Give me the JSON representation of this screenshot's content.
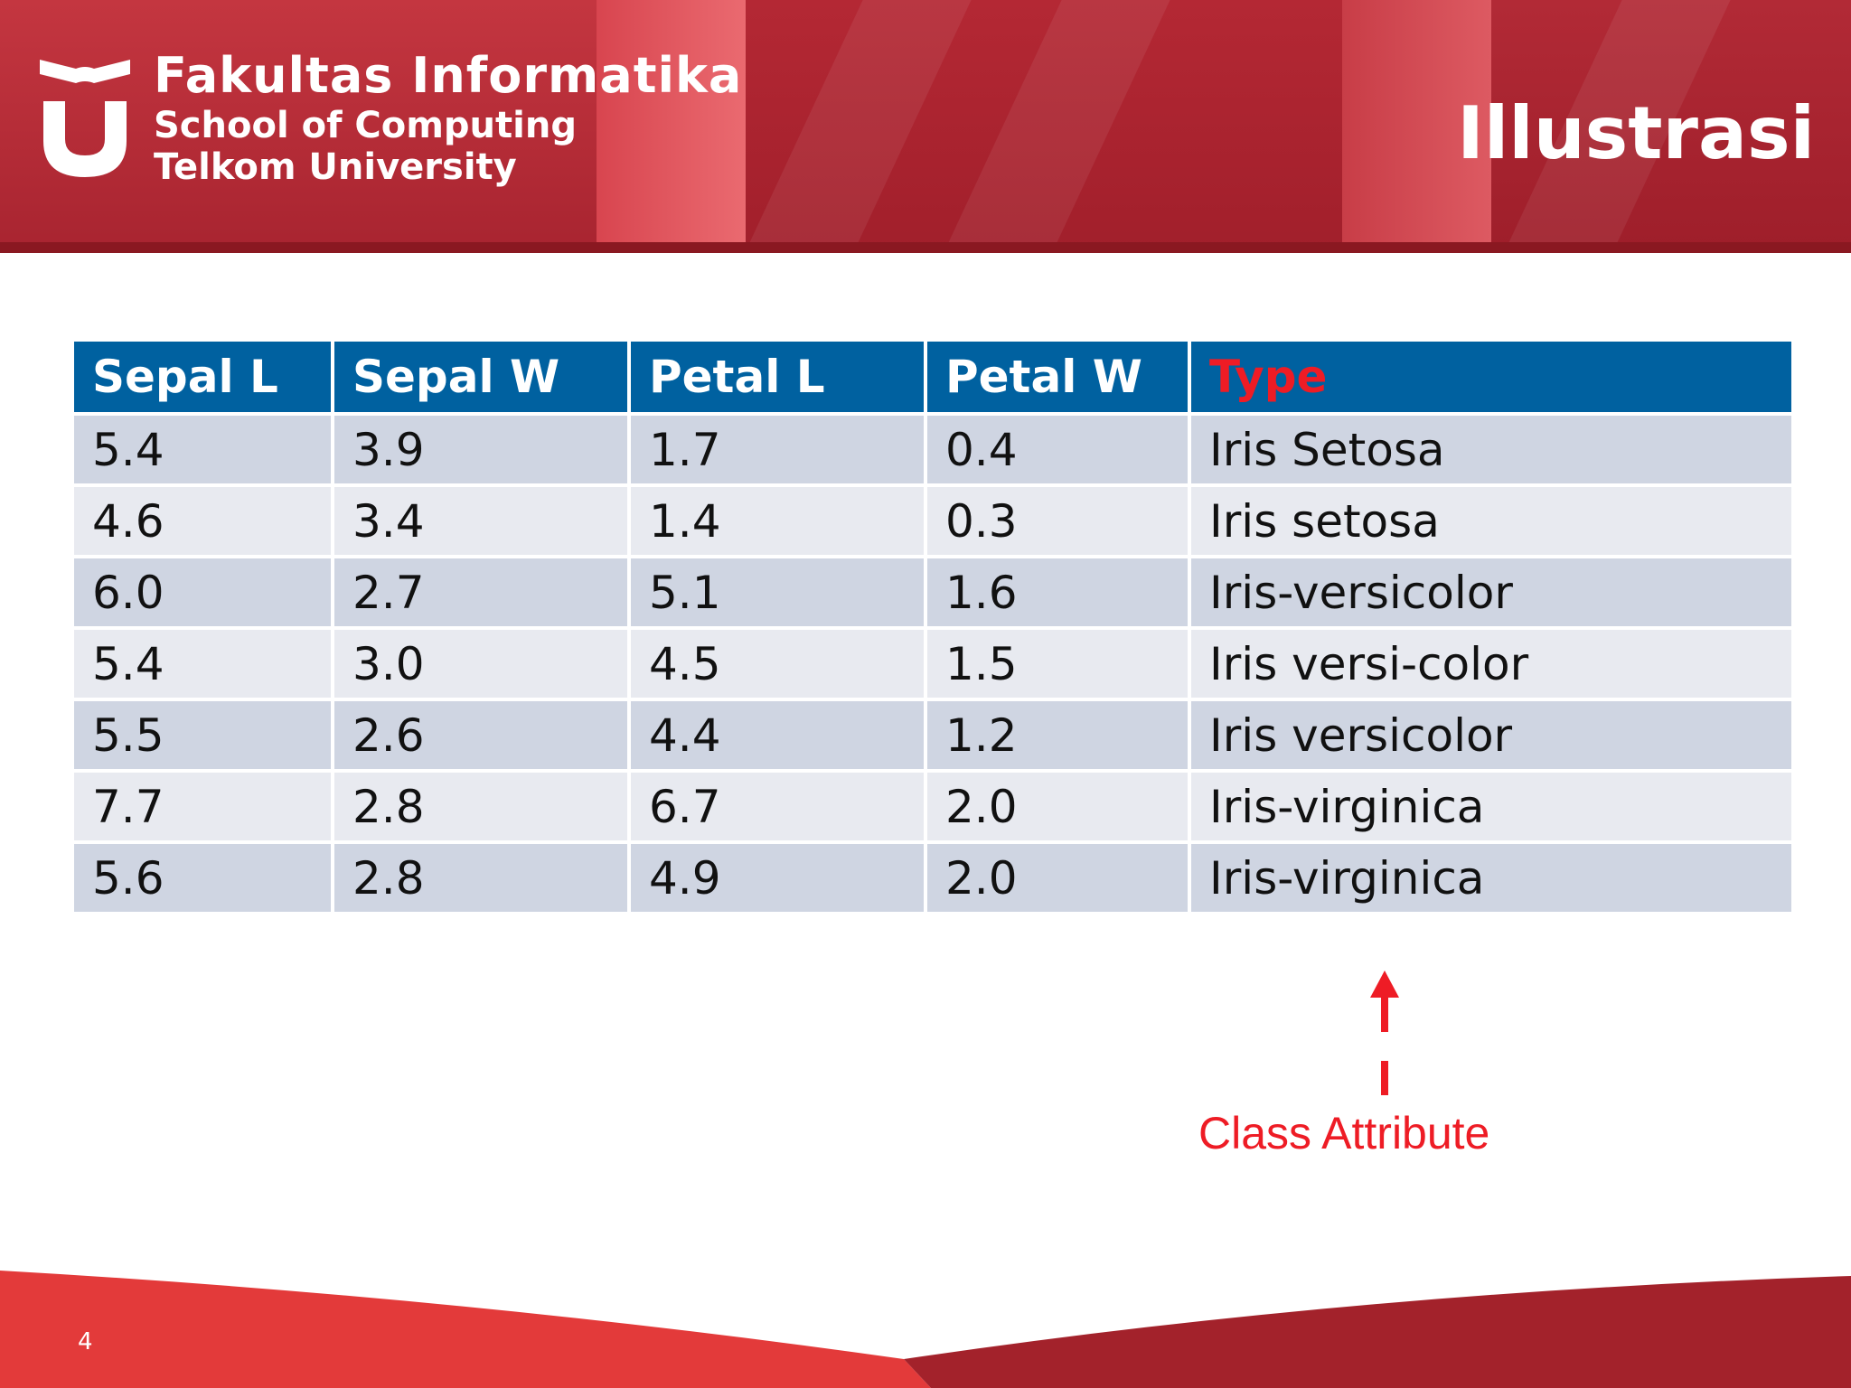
{
  "header": {
    "brand_line1": "Fakultas Informatika",
    "brand_line2": "School of Computing",
    "brand_line3": "Telkom University",
    "title": "Illustrasi"
  },
  "table": {
    "headers": [
      "Sepal L",
      "Sepal W",
      "Petal L",
      "Petal W",
      "Type"
    ],
    "rows": [
      [
        "5.4",
        "3.9",
        "1.7",
        "0.4",
        "Iris Setosa"
      ],
      [
        "4.6",
        "3.4",
        "1.4",
        "0.3",
        "Iris setosa"
      ],
      [
        "6.0",
        "2.7",
        "5.1",
        "1.6",
        "Iris-versicolor"
      ],
      [
        "5.4",
        "3.0",
        "4.5",
        "1.5",
        "Iris versi-color"
      ],
      [
        "5.5",
        "2.6",
        "4.4",
        "1.2",
        "Iris versicolor"
      ],
      [
        "7.7",
        "2.8",
        "6.7",
        "2.0",
        "Iris-virginica"
      ],
      [
        "5.6",
        "2.8",
        "4.9",
        "2.0",
        "Iris-virginica"
      ]
    ]
  },
  "annotation": {
    "label": "Class Attribute"
  },
  "footer": {
    "page_number": "4"
  },
  "colors": {
    "header_red": "#a51f2a",
    "table_header_blue": "#0061a0",
    "accent_red": "#ee1c25",
    "row_odd": "#cfd5e2",
    "row_even": "#e8eaf0"
  }
}
